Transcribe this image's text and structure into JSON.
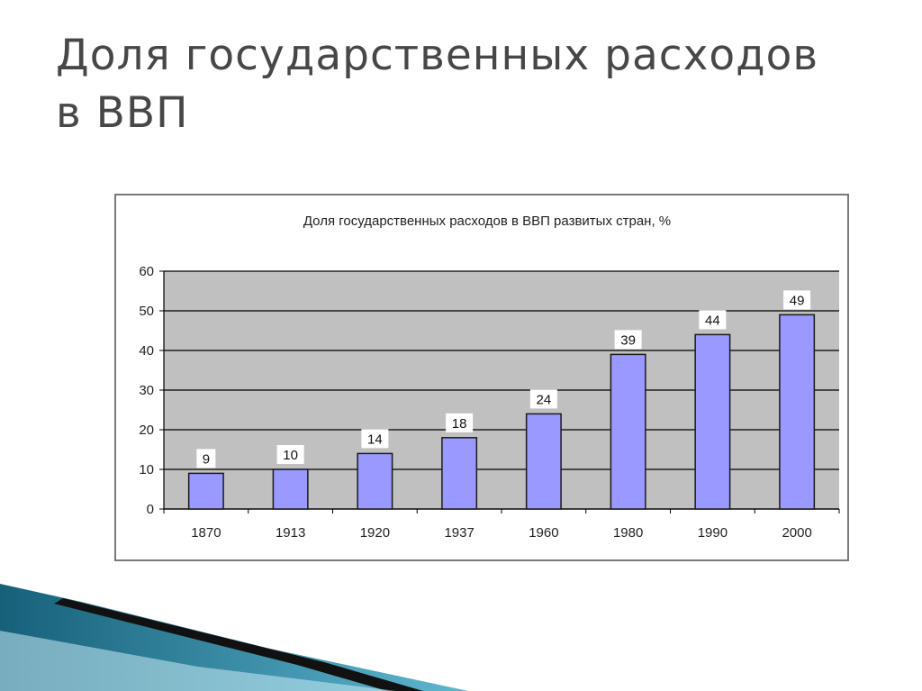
{
  "slide": {
    "title_line1": "Доля государственных расходов",
    "title_line2": "в ВВП"
  },
  "chart_data": {
    "type": "bar",
    "title": "Доля государственных расходов в ВВП развитых стран, %",
    "xlabel": "",
    "ylabel": "",
    "categories": [
      "1870",
      "1913",
      "1920",
      "1937",
      "1960",
      "1980",
      "1990",
      "2000"
    ],
    "values": [
      9,
      10,
      14,
      18,
      24,
      39,
      44,
      49
    ],
    "ylim": [
      0,
      60
    ],
    "yticks": [
      0,
      10,
      20,
      30,
      40,
      50,
      60
    ],
    "grid": true,
    "legend": "none",
    "data_labels": true,
    "colors": {
      "bar": "#9999ff",
      "bar_border": "#1a1a1a",
      "plot_background": "#c0c0c0",
      "gridline": "#000000"
    }
  },
  "decor": {
    "colors": {
      "teal_dark": "#16607a",
      "teal_light": "#5fb7d0",
      "stripe": "#111111"
    }
  }
}
